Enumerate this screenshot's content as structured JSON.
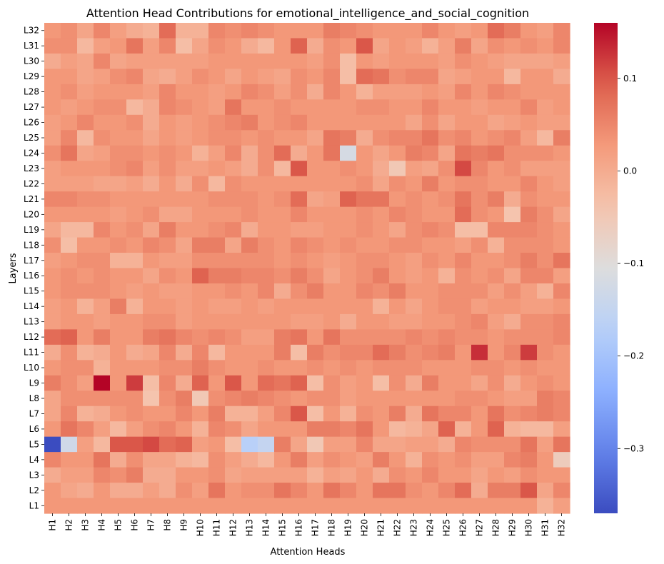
{
  "chart_data": {
    "type": "heatmap",
    "title": "Attention Head Contributions for emotional_intelligence_and_social_cognition",
    "xlabel": "Attention Heads",
    "ylabel": "Layers",
    "x_labels": [
      "H1",
      "H2",
      "H3",
      "H4",
      "H5",
      "H6",
      "H7",
      "H8",
      "H9",
      "H10",
      "H11",
      "H12",
      "H13",
      "H14",
      "H15",
      "H16",
      "H17",
      "H18",
      "H19",
      "H20",
      "H21",
      "H22",
      "H23",
      "H24",
      "H25",
      "H26",
      "H27",
      "H28",
      "H29",
      "H30",
      "H31",
      "H32"
    ],
    "y_labels": [
      "L32",
      "L31",
      "L30",
      "L29",
      "L28",
      "L27",
      "L26",
      "L25",
      "L24",
      "L23",
      "L22",
      "L21",
      "L20",
      "L19",
      "L18",
      "L17",
      "L16",
      "L15",
      "L14",
      "L13",
      "L12",
      "L11",
      "L10",
      "L9",
      "L8",
      "L7",
      "L6",
      "L5",
      "L4",
      "L3",
      "L2",
      "L1"
    ],
    "colormap": "coolwarm",
    "vmin": -0.37,
    "vmax": 0.16,
    "colorbar_ticks": [
      0.1,
      0.0,
      -0.1,
      -0.2,
      -0.3
    ],
    "colorbar_tick_labels": [
      "0.1",
      "0.0",
      "−0.1",
      "−0.2",
      "−0.3"
    ],
    "values": [
      [
        0.03,
        0.04,
        0.01,
        0.05,
        0.02,
        0.0,
        -0.01,
        0.08,
        -0.01,
        -0.01,
        0.05,
        0.04,
        0.05,
        0.04,
        0.03,
        0.03,
        0.03,
        0.06,
        0.05,
        0.04,
        0.03,
        0.03,
        0.03,
        0.05,
        0.03,
        0.02,
        0.03,
        0.08,
        0.06,
        0.03,
        0.02,
        0.05
      ],
      [
        0.04,
        0.04,
        -0.02,
        0.02,
        0.03,
        0.07,
        0.02,
        0.05,
        -0.03,
        0.01,
        0.04,
        0.03,
        0.0,
        -0.02,
        0.03,
        0.09,
        0.0,
        0.04,
        0.03,
        0.1,
        0.01,
        0.03,
        0.02,
        -0.01,
        0.02,
        0.06,
        0.01,
        0.04,
        0.03,
        0.04,
        0.03,
        0.05
      ],
      [
        0.0,
        0.02,
        0.01,
        0.05,
        0.01,
        0.02,
        0.02,
        0.02,
        0.02,
        0.02,
        0.03,
        0.03,
        0.03,
        0.03,
        0.03,
        0.03,
        0.02,
        0.04,
        -0.03,
        0.03,
        0.02,
        0.03,
        0.03,
        0.03,
        0.02,
        0.04,
        0.03,
        0.02,
        0.01,
        0.01,
        0.01,
        0.02
      ],
      [
        0.03,
        0.03,
        0.01,
        0.02,
        0.04,
        0.05,
        0.01,
        0.0,
        0.02,
        0.04,
        0.03,
        0.01,
        0.03,
        0.02,
        0.01,
        0.04,
        0.03,
        0.05,
        -0.03,
        0.08,
        0.07,
        0.04,
        0.05,
        0.05,
        0.01,
        0.02,
        0.03,
        0.03,
        -0.02,
        0.03,
        0.03,
        0.0
      ],
      [
        0.03,
        0.04,
        0.02,
        0.03,
        0.03,
        0.03,
        0.02,
        0.05,
        0.03,
        0.03,
        0.02,
        0.03,
        0.05,
        0.04,
        0.02,
        0.04,
        0.0,
        0.05,
        0.03,
        -0.01,
        0.02,
        0.02,
        0.02,
        0.03,
        0.02,
        0.05,
        0.03,
        0.05,
        0.04,
        0.03,
        0.03,
        0.03
      ],
      [
        0.03,
        0.02,
        0.03,
        0.04,
        0.04,
        -0.02,
        0.0,
        0.05,
        0.04,
        0.03,
        0.02,
        0.07,
        0.03,
        0.03,
        0.04,
        0.03,
        0.03,
        0.03,
        0.03,
        0.04,
        0.04,
        0.03,
        0.03,
        0.05,
        0.03,
        0.03,
        0.02,
        0.03,
        0.03,
        0.05,
        0.02,
        0.03
      ],
      [
        0.02,
        0.03,
        0.05,
        0.03,
        0.03,
        0.04,
        0.0,
        0.03,
        0.02,
        0.03,
        0.04,
        0.05,
        0.06,
        0.03,
        0.04,
        0.05,
        0.03,
        0.03,
        0.03,
        0.03,
        0.03,
        0.03,
        0.01,
        0.04,
        0.01,
        0.03,
        0.03,
        0.01,
        0.02,
        0.03,
        0.02,
        0.02
      ],
      [
        0.02,
        0.05,
        -0.02,
        0.04,
        0.03,
        0.03,
        0.01,
        0.03,
        0.02,
        0.03,
        0.04,
        0.04,
        0.03,
        0.04,
        0.03,
        0.03,
        0.01,
        0.07,
        0.06,
        0.0,
        0.04,
        0.05,
        0.05,
        0.07,
        0.04,
        0.05,
        0.03,
        0.04,
        0.05,
        0.02,
        -0.02,
        0.06
      ],
      [
        0.04,
        0.07,
        0.01,
        0.02,
        0.04,
        0.04,
        0.03,
        0.04,
        0.03,
        -0.01,
        0.02,
        0.05,
        0.0,
        0.04,
        0.08,
        0.0,
        0.03,
        0.07,
        -0.12,
        0.03,
        0.01,
        0.03,
        0.06,
        0.05,
        0.01,
        0.07,
        0.06,
        0.07,
        0.04,
        0.04,
        0.04,
        0.03
      ],
      [
        0.02,
        0.03,
        0.03,
        0.03,
        0.04,
        0.05,
        0.02,
        0.04,
        0.02,
        0.02,
        0.03,
        0.02,
        0.0,
        0.04,
        -0.02,
        0.1,
        0.03,
        0.03,
        0.04,
        0.03,
        0.0,
        -0.05,
        0.02,
        0.01,
        0.04,
        0.11,
        0.05,
        0.03,
        0.04,
        0.02,
        0.02,
        0.02
      ],
      [
        0.02,
        0.02,
        0.02,
        0.01,
        0.01,
        0.02,
        0.0,
        0.03,
        0.0,
        0.04,
        -0.02,
        0.04,
        0.03,
        0.03,
        0.03,
        0.03,
        0.03,
        0.03,
        0.03,
        0.04,
        0.01,
        0.04,
        0.03,
        0.06,
        0.03,
        0.04,
        0.04,
        0.03,
        0.03,
        0.05,
        0.03,
        0.02
      ],
      [
        0.05,
        0.05,
        0.04,
        0.04,
        0.03,
        0.03,
        0.03,
        0.03,
        0.03,
        0.03,
        0.04,
        0.04,
        0.04,
        0.03,
        0.04,
        0.08,
        0.01,
        0.02,
        0.09,
        0.07,
        0.07,
        0.03,
        0.04,
        0.03,
        0.04,
        0.07,
        0.04,
        0.06,
        0.0,
        0.04,
        0.03,
        0.03
      ],
      [
        0.03,
        0.03,
        0.03,
        0.03,
        0.02,
        0.03,
        0.04,
        0.01,
        0.01,
        0.03,
        0.03,
        0.03,
        0.04,
        0.03,
        0.03,
        0.05,
        0.03,
        0.03,
        0.03,
        0.04,
        0.03,
        0.05,
        0.04,
        0.03,
        0.03,
        0.08,
        0.04,
        0.03,
        -0.04,
        0.06,
        0.04,
        0.01
      ],
      [
        0.01,
        -0.02,
        -0.02,
        0.05,
        0.03,
        0.04,
        0.01,
        0.06,
        0.03,
        0.03,
        0.04,
        0.05,
        0.0,
        0.03,
        0.03,
        0.02,
        0.02,
        0.03,
        0.03,
        0.04,
        0.03,
        0.01,
        0.04,
        0.05,
        0.04,
        -0.03,
        -0.03,
        0.05,
        0.05,
        0.05,
        0.04,
        0.03
      ],
      [
        0.04,
        -0.03,
        0.03,
        0.03,
        0.04,
        0.03,
        0.05,
        0.04,
        0.01,
        0.06,
        0.06,
        0.01,
        0.06,
        0.04,
        0.03,
        0.05,
        0.04,
        0.03,
        0.04,
        0.03,
        0.03,
        0.04,
        0.04,
        0.03,
        0.03,
        0.02,
        0.04,
        -0.01,
        0.04,
        0.04,
        0.04,
        0.03
      ],
      [
        0.02,
        0.03,
        0.04,
        0.04,
        -0.01,
        -0.01,
        0.03,
        0.02,
        0.02,
        0.04,
        0.04,
        0.04,
        0.04,
        0.04,
        0.03,
        0.04,
        0.03,
        0.02,
        0.03,
        0.04,
        0.04,
        0.03,
        0.02,
        0.04,
        0.03,
        0.05,
        0.03,
        0.03,
        0.04,
        0.06,
        0.04,
        0.07
      ],
      [
        0.03,
        0.04,
        0.03,
        0.04,
        0.03,
        0.03,
        0.01,
        0.04,
        0.03,
        0.09,
        0.06,
        0.06,
        0.05,
        0.05,
        0.04,
        0.06,
        0.04,
        0.01,
        0.03,
        0.04,
        0.06,
        0.03,
        0.02,
        0.03,
        -0.01,
        0.04,
        0.03,
        0.04,
        0.01,
        0.05,
        0.05,
        0.02
      ],
      [
        0.03,
        0.04,
        0.04,
        0.04,
        0.03,
        0.02,
        0.03,
        0.02,
        0.02,
        0.03,
        0.03,
        0.04,
        0.03,
        0.05,
        0.0,
        0.04,
        0.06,
        0.03,
        0.03,
        0.05,
        0.04,
        0.06,
        0.03,
        0.03,
        0.04,
        0.04,
        0.04,
        0.02,
        0.04,
        0.02,
        -0.01,
        0.05
      ],
      [
        0.02,
        0.03,
        -0.01,
        0.02,
        0.06,
        -0.01,
        0.03,
        0.03,
        0.02,
        0.03,
        0.02,
        0.02,
        0.03,
        0.02,
        0.03,
        0.03,
        0.03,
        0.03,
        0.03,
        0.03,
        -0.01,
        0.03,
        0.01,
        0.03,
        0.04,
        0.04,
        0.02,
        0.03,
        0.03,
        0.02,
        0.02,
        0.03
      ],
      [
        0.02,
        0.03,
        0.03,
        0.02,
        0.03,
        0.03,
        0.04,
        0.04,
        0.02,
        0.03,
        0.03,
        0.03,
        0.03,
        0.03,
        0.03,
        0.02,
        0.02,
        0.03,
        0.0,
        0.03,
        0.03,
        0.02,
        0.02,
        0.03,
        0.03,
        0.04,
        0.05,
        0.02,
        0.0,
        0.04,
        0.04,
        0.05
      ],
      [
        0.08,
        0.09,
        0.03,
        0.06,
        0.03,
        0.03,
        0.06,
        0.07,
        0.05,
        0.04,
        0.05,
        0.04,
        0.02,
        0.02,
        0.06,
        0.07,
        0.03,
        0.07,
        0.04,
        0.04,
        0.04,
        0.04,
        0.05,
        0.04,
        0.05,
        0.04,
        0.04,
        0.03,
        0.04,
        0.04,
        0.04,
        0.05
      ],
      [
        0.0,
        0.04,
        -0.01,
        0.0,
        0.03,
        0.0,
        0.01,
        0.05,
        0.0,
        0.05,
        -0.02,
        0.03,
        0.03,
        0.03,
        0.06,
        -0.03,
        0.06,
        0.04,
        0.05,
        0.05,
        0.08,
        0.06,
        0.04,
        0.05,
        0.06,
        0.03,
        0.13,
        0.03,
        0.05,
        0.12,
        0.04,
        0.03
      ],
      [
        0.03,
        0.04,
        0.04,
        -0.01,
        0.03,
        0.03,
        0.03,
        0.04,
        0.04,
        0.06,
        0.04,
        0.03,
        0.03,
        0.04,
        0.03,
        0.03,
        0.04,
        0.03,
        0.04,
        0.03,
        0.04,
        0.04,
        0.04,
        0.03,
        0.03,
        0.03,
        0.04,
        0.04,
        0.03,
        0.04,
        0.03,
        0.03
      ],
      [
        0.06,
        0.04,
        0.02,
        0.16,
        0.03,
        0.12,
        -0.03,
        0.05,
        0.0,
        0.09,
        0.03,
        0.1,
        0.03,
        0.08,
        0.07,
        0.09,
        -0.03,
        0.04,
        0.02,
        0.03,
        -0.03,
        0.04,
        0.0,
        0.06,
        0.03,
        0.03,
        0.01,
        0.04,
        0.0,
        0.03,
        0.04,
        0.03
      ],
      [
        0.01,
        0.04,
        0.04,
        0.04,
        0.04,
        0.04,
        -0.04,
        0.04,
        0.06,
        -0.05,
        0.04,
        0.05,
        0.06,
        0.05,
        0.04,
        0.03,
        0.04,
        0.04,
        0.02,
        0.03,
        0.03,
        0.03,
        0.03,
        0.03,
        0.03,
        0.04,
        0.04,
        0.03,
        0.02,
        0.02,
        0.06,
        0.05
      ],
      [
        0.01,
        0.05,
        -0.01,
        0.0,
        0.03,
        0.04,
        0.03,
        0.03,
        0.05,
        0.03,
        0.06,
        -0.01,
        -0.01,
        0.02,
        0.05,
        0.1,
        -0.03,
        0.03,
        -0.01,
        0.04,
        0.03,
        0.06,
        0.0,
        0.07,
        0.05,
        0.05,
        0.03,
        0.07,
        0.04,
        0.05,
        0.06,
        0.05
      ],
      [
        0.03,
        0.07,
        0.05,
        0.02,
        -0.02,
        0.02,
        0.04,
        0.05,
        0.03,
        -0.01,
        0.05,
        0.04,
        0.01,
        0.03,
        0.03,
        0.03,
        0.06,
        0.06,
        0.05,
        0.07,
        0.03,
        -0.02,
        -0.01,
        0.01,
        0.09,
        -0.01,
        0.03,
        0.09,
        -0.01,
        -0.02,
        -0.02,
        0.02
      ],
      [
        -0.37,
        -0.13,
        0.02,
        -0.02,
        0.1,
        0.1,
        0.11,
        0.08,
        0.09,
        0.02,
        0.03,
        -0.03,
        -0.17,
        -0.15,
        0.06,
        0.01,
        -0.05,
        0.02,
        0.02,
        0.05,
        0.01,
        0.01,
        0.02,
        0.02,
        0.0,
        0.05,
        0.04,
        0.04,
        0.04,
        0.07,
        0.02,
        0.07
      ],
      [
        0.05,
        0.03,
        0.03,
        0.07,
        0.0,
        0.04,
        0.01,
        0.01,
        -0.01,
        -0.02,
        0.04,
        0.02,
        0.0,
        -0.02,
        0.03,
        0.06,
        0.02,
        0.04,
        0.03,
        0.02,
        0.06,
        0.03,
        -0.01,
        0.04,
        0.03,
        0.04,
        0.02,
        0.02,
        0.05,
        0.06,
        0.03,
        -0.06
      ],
      [
        0.0,
        0.02,
        0.02,
        0.05,
        0.04,
        0.06,
        0.0,
        0.0,
        0.03,
        0.03,
        0.04,
        0.01,
        0.02,
        0.02,
        0.02,
        0.02,
        -0.01,
        0.02,
        0.01,
        0.03,
        0.0,
        0.04,
        0.03,
        0.05,
        0.03,
        0.03,
        0.01,
        0.03,
        0.02,
        0.04,
        0.03,
        0.03
      ],
      [
        0.03,
        0.01,
        0.0,
        0.03,
        0.0,
        0.0,
        0.02,
        0.0,
        0.04,
        0.02,
        0.07,
        0.03,
        0.04,
        0.04,
        0.07,
        0.05,
        0.03,
        0.07,
        0.05,
        0.03,
        0.07,
        0.07,
        0.04,
        0.03,
        0.05,
        0.08,
        0.0,
        0.06,
        0.06,
        0.1,
        0.01,
        0.05
      ],
      [
        0.03,
        0.03,
        0.03,
        0.03,
        0.03,
        0.03,
        0.03,
        0.03,
        0.03,
        0.03,
        0.03,
        0.03,
        0.03,
        0.03,
        0.03,
        0.03,
        0.03,
        0.03,
        0.03,
        0.03,
        0.03,
        0.03,
        0.03,
        0.03,
        0.03,
        0.03,
        0.03,
        0.03,
        0.03,
        0.03,
        -0.01,
        0.02
      ]
    ]
  }
}
